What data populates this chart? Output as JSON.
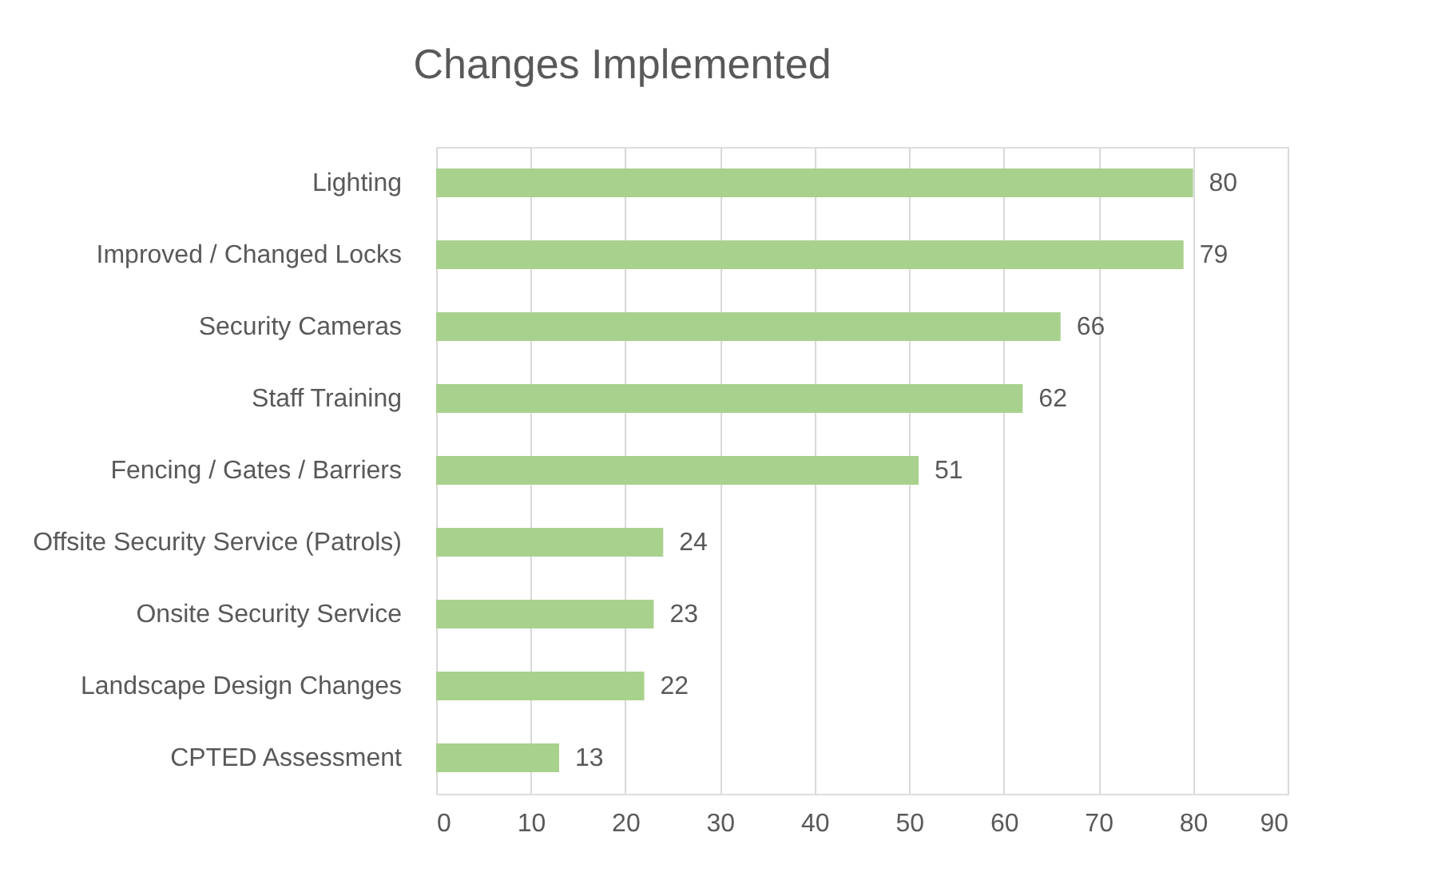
{
  "chart_data": {
    "type": "bar",
    "orientation": "horizontal",
    "title": "Changes Implemented",
    "categories": [
      "Lighting",
      "Improved / Changed Locks",
      "Security Cameras",
      "Staff Training",
      "Fencing / Gates / Barriers",
      "Offsite Security Service (Patrols)",
      "Onsite Security Service",
      "Landscape Design Changes",
      "CPTED Assessment"
    ],
    "values": [
      80,
      79,
      66,
      62,
      51,
      24,
      23,
      22,
      13
    ],
    "color": "#a9d18e",
    "xlim": [
      0,
      90
    ],
    "xticks": [
      0,
      10,
      20,
      30,
      40,
      50,
      60,
      70,
      80,
      90
    ],
    "grid": "x",
    "data_labels": true
  }
}
